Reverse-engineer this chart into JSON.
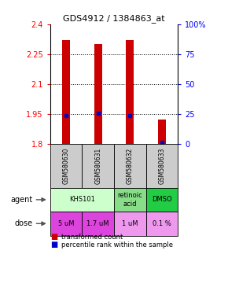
{
  "title": "GDS4912 / 1384863_at",
  "samples": [
    "GSM580630",
    "GSM580631",
    "GSM580632",
    "GSM580633"
  ],
  "bar_values": [
    2.32,
    2.3,
    2.32,
    1.92
  ],
  "bar_bottoms": [
    1.8,
    1.8,
    1.8,
    1.8
  ],
  "percentile_values": [
    1.942,
    1.952,
    1.942,
    1.808
  ],
  "ylim": [
    1.8,
    2.4
  ],
  "yticks_left": [
    1.8,
    1.95,
    2.1,
    2.25,
    2.4
  ],
  "yticks_right_vals": [
    1.8,
    1.95,
    2.1,
    2.25,
    2.4
  ],
  "yticks_right_labels": [
    "0",
    "25",
    "50",
    "75",
    "100%"
  ],
  "hlines": [
    1.95,
    2.1,
    2.25
  ],
  "bar_color": "#cc0000",
  "percentile_color": "#0000cc",
  "dose_labels": [
    "5 uM",
    "1.7 uM",
    "1 uM",
    "0.1 %"
  ],
  "dose_colors": [
    "#dd44dd",
    "#dd44dd",
    "#ee99ee",
    "#ee99ee"
  ],
  "sample_bg": "#cccccc",
  "bar_width": 0.25,
  "agent_info": [
    {
      "col": 0,
      "span": 2,
      "color": "#ccffcc",
      "label": "KHS101"
    },
    {
      "col": 2,
      "span": 1,
      "color": "#88dd88",
      "label": "retinoic\nacid"
    },
    {
      "col": 3,
      "span": 1,
      "color": "#22cc44",
      "label": "DMSO"
    }
  ]
}
